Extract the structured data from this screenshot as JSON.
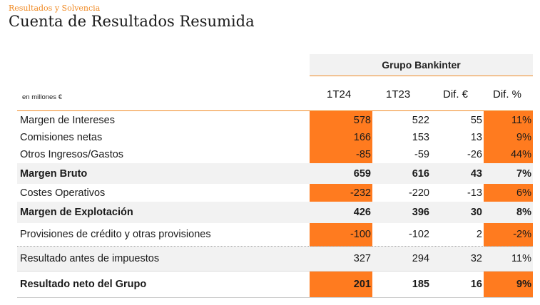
{
  "header": {
    "section": "Resultados y Solvencia",
    "title": "Cuenta de Resultados Resumida"
  },
  "table": {
    "group_label": "Grupo Bankinter",
    "units": "en millones €",
    "columns": [
      "1T24",
      "1T23",
      "Dif. €",
      "Dif. %"
    ],
    "highlight_color": "#ff7b1f",
    "rows": [
      {
        "label": "Margen de Intereses",
        "values": [
          "578",
          "522",
          "55",
          "11%"
        ]
      },
      {
        "label": "Comisiones netas",
        "values": [
          "166",
          "153",
          "13",
          "9%"
        ]
      },
      {
        "label": "Otros Ingresos/Gastos",
        "values": [
          "-85",
          "-59",
          "-26",
          "44%"
        ]
      },
      {
        "label": "Margen Bruto",
        "values": [
          "659",
          "616",
          "43",
          "7%"
        ]
      },
      {
        "label": "Costes Operativos",
        "values": [
          "-232",
          "-220",
          "-13",
          "6%"
        ]
      },
      {
        "label": "Margen de Explotación",
        "values": [
          "426",
          "396",
          "30",
          "8%"
        ]
      },
      {
        "label": "Provisiones de crédito y otras provisiones",
        "values": [
          "-100",
          "-102",
          "2",
          "-2%"
        ]
      },
      {
        "label": "Resultado antes de impuestos",
        "values": [
          "327",
          "294",
          "32",
          "11%"
        ]
      },
      {
        "label": "Resultado neto del Grupo",
        "values": [
          "201",
          "185",
          "16",
          "9%"
        ]
      }
    ]
  }
}
